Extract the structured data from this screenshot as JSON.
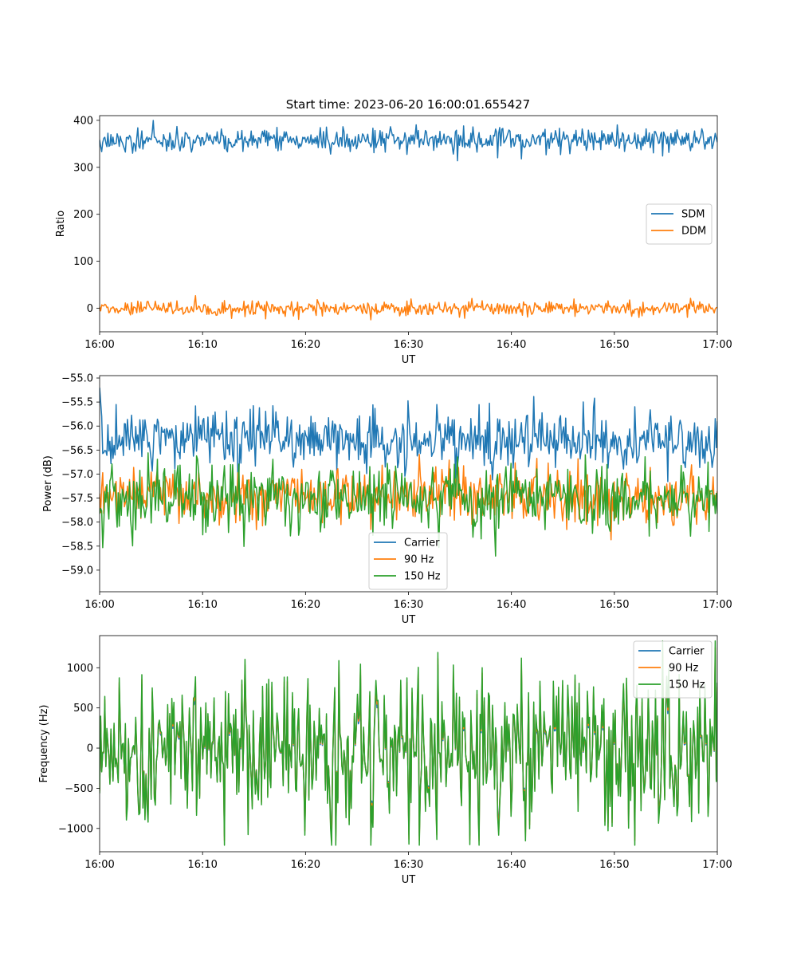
{
  "chart_data": [
    {
      "type": "line",
      "title": "Start time: 2023-06-20 16:00:01.655427",
      "xlabel": "UT",
      "ylabel": "Ratio",
      "xlim": [
        "16:00",
        "17:00"
      ],
      "ylim": [
        -50,
        410
      ],
      "xticks": [
        "16:00",
        "16:10",
        "16:20",
        "16:30",
        "16:40",
        "16:50",
        "17:00"
      ],
      "yticks": [
        0,
        100,
        200,
        300,
        400
      ],
      "legend": "center-right",
      "grid": false,
      "series": [
        {
          "name": "SDM",
          "color": "#1f77b4",
          "mean": 357,
          "spread": 13,
          "values_approx": "fluctuates ~320-390"
        },
        {
          "name": "DDM",
          "color": "#ff7f0e",
          "mean": 0,
          "spread": 8,
          "values_approx": "fluctuates ~-30-25"
        }
      ]
    },
    {
      "type": "line",
      "title": "",
      "xlabel": "UT",
      "ylabel": "Power (dB)",
      "xlim": [
        "16:00",
        "17:00"
      ],
      "ylim": [
        -59.45,
        -54.95
      ],
      "xticks": [
        "16:00",
        "16:10",
        "16:20",
        "16:30",
        "16:40",
        "16:50",
        "17:00"
      ],
      "yticks": [
        -55.0,
        -55.5,
        -56.0,
        -56.5,
        -57.0,
        -57.5,
        -58.0,
        -58.5,
        -59.0
      ],
      "ytick_labels": [
        "−55.0",
        "−55.5",
        "−56.0",
        "−56.5",
        "−57.0",
        "−57.5",
        "−58.0",
        "−58.5",
        "−59.0"
      ],
      "legend": "lower-center",
      "grid": false,
      "series": [
        {
          "name": "Carrier",
          "color": "#1f77b4",
          "mean": -56.3,
          "spread": 0.3,
          "values_approx": "fluctuates ~-57.0 to -55.4, starts near -55.2"
        },
        {
          "name": "90 Hz",
          "color": "#ff7f0e",
          "mean": -57.45,
          "spread": 0.3,
          "values_approx": "fluctuates ~-58.9 to -56.3"
        },
        {
          "name": "150 Hz",
          "color": "#2ca02c",
          "mean": -57.5,
          "spread": 0.35,
          "values_approx": "fluctuates ~-59.2 to -56.4"
        }
      ]
    },
    {
      "type": "line",
      "title": "",
      "xlabel": "UT",
      "ylabel": "Frequency (Hz)",
      "xlim": [
        "16:00",
        "17:00"
      ],
      "ylim": [
        -1290,
        1400
      ],
      "xticks": [
        "16:00",
        "16:10",
        "16:20",
        "16:30",
        "16:40",
        "16:50",
        "17:00"
      ],
      "yticks": [
        -1000,
        -500,
        0,
        500,
        1000
      ],
      "ytick_labels": [
        "−1000",
        "−500",
        "0",
        "500",
        "1000"
      ],
      "legend": "top-right",
      "grid": false,
      "series": [
        {
          "name": "Carrier",
          "color": "#1f77b4",
          "mean": -40,
          "spread": 450,
          "values_approx": "oscillates ~-1150 to 1250"
        },
        {
          "name": "90 Hz",
          "color": "#ff7f0e",
          "mean": 0,
          "spread": 450,
          "values_approx": "oscillates ~-1000 to 1250"
        },
        {
          "name": "150 Hz",
          "color": "#2ca02c",
          "mean": 30,
          "spread": 450,
          "values_approx": "oscillates ~-1000 to 1250"
        }
      ]
    }
  ]
}
